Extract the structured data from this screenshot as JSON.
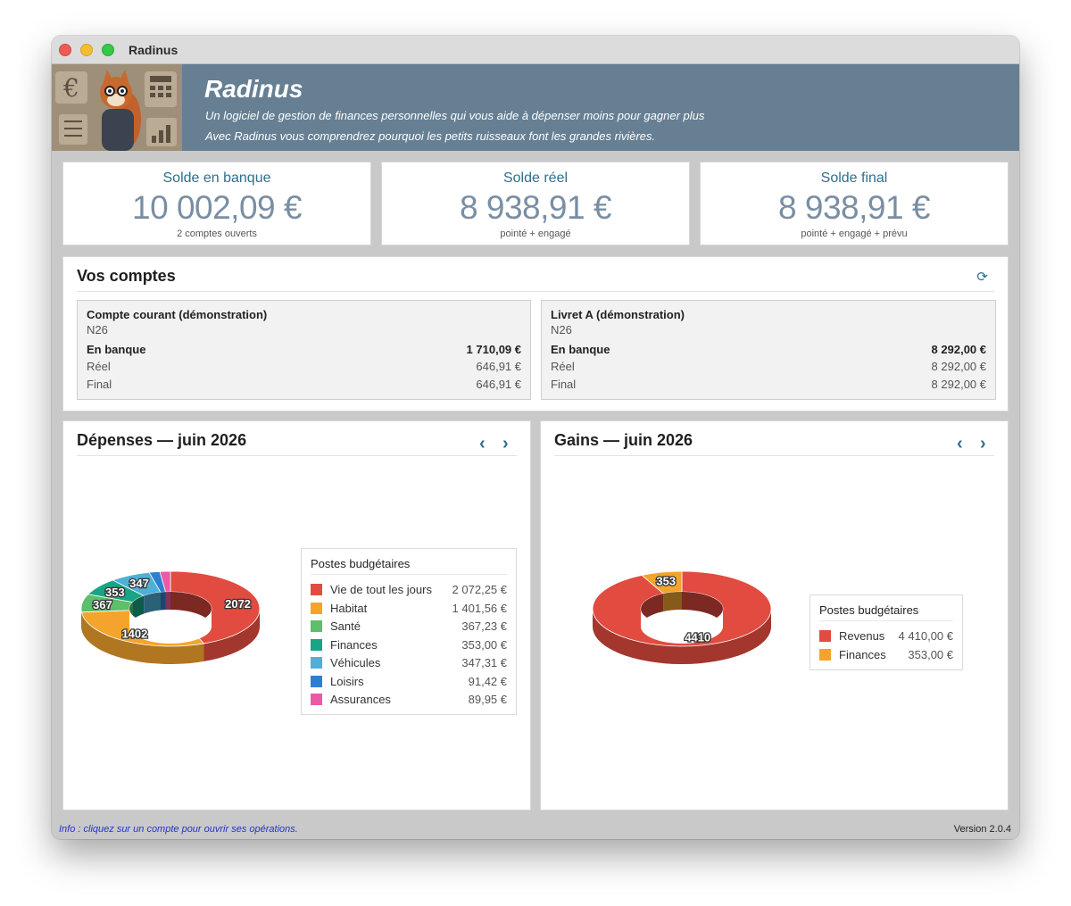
{
  "window": {
    "title": "Radinus"
  },
  "banner": {
    "app_name": "Radinus",
    "tagline_1": "Un logiciel de gestion de finances personnelles qui vous aide à dépenser moins pour gagner plus",
    "tagline_2": "Avec Radinus vous comprendrez pourquoi les petits ruisseaux font les grandes rivières."
  },
  "summary": [
    {
      "title": "Solde en banque",
      "value": "10 002,09 €",
      "sub": "2 comptes ouverts"
    },
    {
      "title": "Solde réel",
      "value": "8 938,91 €",
      "sub": "pointé + engagé"
    },
    {
      "title": "Solde final",
      "value": "8 938,91 €",
      "sub": "pointé + engagé + prévu"
    }
  ],
  "accounts": {
    "title": "Vos comptes",
    "refresh_icon": "refresh-icon",
    "items": [
      {
        "name": "Compte courant (démonstration)",
        "bank": "N26",
        "rows": [
          {
            "label": "En banque",
            "value": "1 710,09 €"
          },
          {
            "label": "Réel",
            "value": "646,91 €"
          },
          {
            "label": "Final",
            "value": "646,91 €"
          }
        ]
      },
      {
        "name": "Livret A (démonstration)",
        "bank": "N26",
        "rows": [
          {
            "label": "En banque",
            "value": "8 292,00 €"
          },
          {
            "label": "Réel",
            "value": "8 292,00 €"
          },
          {
            "label": "Final",
            "value": "8 292,00 €"
          }
        ]
      }
    ]
  },
  "nav": {
    "prev": "‹",
    "next": "›"
  },
  "depenses": {
    "title": "Dépenses — juin 2026",
    "legend_title": "Postes budgétaires",
    "legend": [
      {
        "label": "Vie de tout les jours",
        "value": "2 072,25 €",
        "color": "#e24b3f"
      },
      {
        "label": "Habitat",
        "value": "1 401,56 €",
        "color": "#f4a42c"
      },
      {
        "label": "Santé",
        "value": "367,23 €",
        "color": "#5cbf6a"
      },
      {
        "label": "Finances",
        "value": "353,00 €",
        "color": "#17a585"
      },
      {
        "label": "Véhicules",
        "value": "347,31 €",
        "color": "#4fb0d6"
      },
      {
        "label": "Loisirs",
        "value": "91,42 €",
        "color": "#2f7fcf"
      },
      {
        "label": "Assurances",
        "value": "89,95 €",
        "color": "#ea5aa5"
      }
    ]
  },
  "gains": {
    "title": "Gains — juin 2026",
    "legend_title": "Postes budgétaires",
    "legend": [
      {
        "label": "Revenus",
        "value": "4 410,00 €",
        "color": "#e24b3f"
      },
      {
        "label": "Finances",
        "value": "353,00 €",
        "color": "#f4a42c"
      }
    ]
  },
  "chart_data": [
    {
      "type": "pie",
      "title": "Dépenses — juin 2026",
      "categories": [
        "Vie de tout les jours",
        "Habitat",
        "Santé",
        "Finances",
        "Véhicules",
        "Loisirs",
        "Assurances"
      ],
      "values": [
        2072.25,
        1401.56,
        367.23,
        353.0,
        347.31,
        91.42,
        89.95
      ],
      "data_labels": [
        "2072",
        "1402",
        "367",
        "353",
        "347",
        "",
        ""
      ],
      "colors": [
        "#e24b3f",
        "#f4a42c",
        "#5cbf6a",
        "#17a585",
        "#4fb0d6",
        "#2f7fcf",
        "#ea5aa5"
      ],
      "style": "3d-donut",
      "legend": "right"
    },
    {
      "type": "pie",
      "title": "Gains — juin 2026",
      "categories": [
        "Revenus",
        "Finances"
      ],
      "values": [
        4410.0,
        353.0
      ],
      "data_labels": [
        "4410",
        "353"
      ],
      "colors": [
        "#e24b3f",
        "#f4a42c"
      ],
      "style": "3d-donut",
      "legend": "right"
    }
  ],
  "status": {
    "info": "Info : cliquez sur un compte pour ouvrir ses opérations.",
    "version": "Version 2.0.4"
  }
}
